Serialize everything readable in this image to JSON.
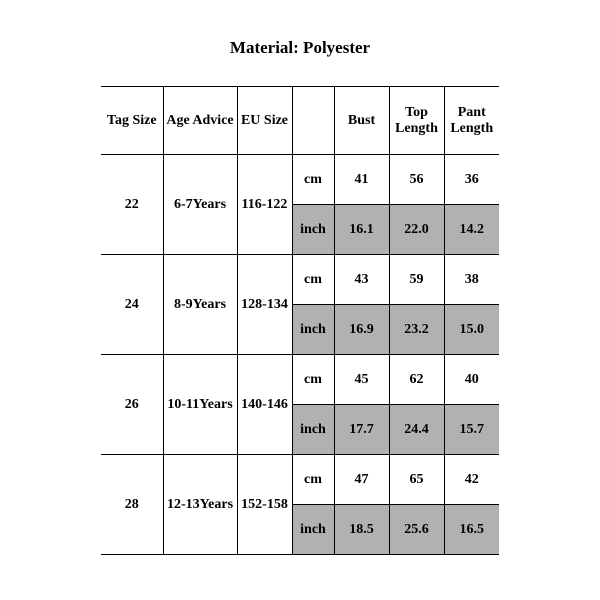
{
  "title": "Material: Polyester",
  "table": {
    "columns": [
      "Tag Size",
      "Age Advice",
      "EU Size",
      "",
      "Bust",
      "Top Length",
      "Pant Length"
    ],
    "units": [
      "cm",
      "inch"
    ],
    "shade_color": "#b1b1b1",
    "border_color": "#000000",
    "font_family": "Times New Roman",
    "header_fontsize": 14,
    "cell_fontsize": 14,
    "rows": [
      {
        "tag": "22",
        "age": "6-7Years",
        "eu": "116-122",
        "cm": [
          "41",
          "56",
          "36"
        ],
        "inch": [
          "16.1",
          "22.0",
          "14.2"
        ]
      },
      {
        "tag": "24",
        "age": "8-9Years",
        "eu": "128-134",
        "cm": [
          "43",
          "59",
          "38"
        ],
        "inch": [
          "16.9",
          "23.2",
          "15.0"
        ]
      },
      {
        "tag": "26",
        "age": "10-11Years",
        "eu": "140-146",
        "cm": [
          "45",
          "62",
          "40"
        ],
        "inch": [
          "17.7",
          "24.4",
          "15.7"
        ]
      },
      {
        "tag": "28",
        "age": "12-13Years",
        "eu": "152-158",
        "cm": [
          "47",
          "65",
          "42"
        ],
        "inch": [
          "18.5",
          "25.6",
          "16.5"
        ]
      }
    ]
  }
}
